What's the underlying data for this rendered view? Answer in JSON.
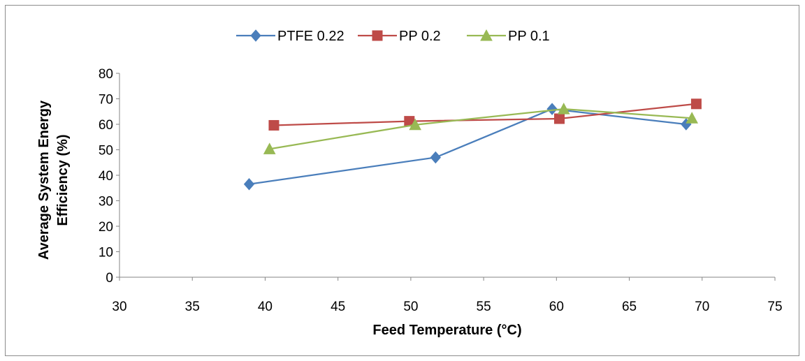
{
  "chart_data": {
    "type": "scatter",
    "xlabel": "Feed Temperature (°C)",
    "ylabel_lines": [
      "Average System Energy",
      "Efficiency (%)"
    ],
    "xlim": [
      30,
      75
    ],
    "ylim": [
      0,
      80
    ],
    "x_ticks": [
      30,
      35,
      40,
      45,
      50,
      55,
      60,
      65,
      70,
      75
    ],
    "y_ticks": [
      0,
      10,
      20,
      30,
      40,
      50,
      60,
      70,
      80
    ],
    "grid": false,
    "legend_position": "top",
    "series": [
      {
        "name": "PTFE 0.22",
        "color": "#4a7ebb",
        "marker": "diamond",
        "points": [
          [
            38.9,
            36.5
          ],
          [
            51.7,
            47.0
          ],
          [
            59.7,
            66.0
          ],
          [
            68.9,
            60.0
          ]
        ]
      },
      {
        "name": "PP 0.2",
        "color": "#be4b48",
        "marker": "square",
        "points": [
          [
            40.6,
            59.6
          ],
          [
            49.9,
            61.2
          ],
          [
            60.2,
            62.2
          ],
          [
            69.6,
            68.0
          ]
        ]
      },
      {
        "name": "PP 0.1",
        "color": "#98b954",
        "marker": "triangle",
        "points": [
          [
            40.3,
            50.3
          ],
          [
            50.3,
            59.8
          ],
          [
            60.5,
            66.0
          ],
          [
            69.3,
            62.4
          ]
        ]
      }
    ]
  }
}
